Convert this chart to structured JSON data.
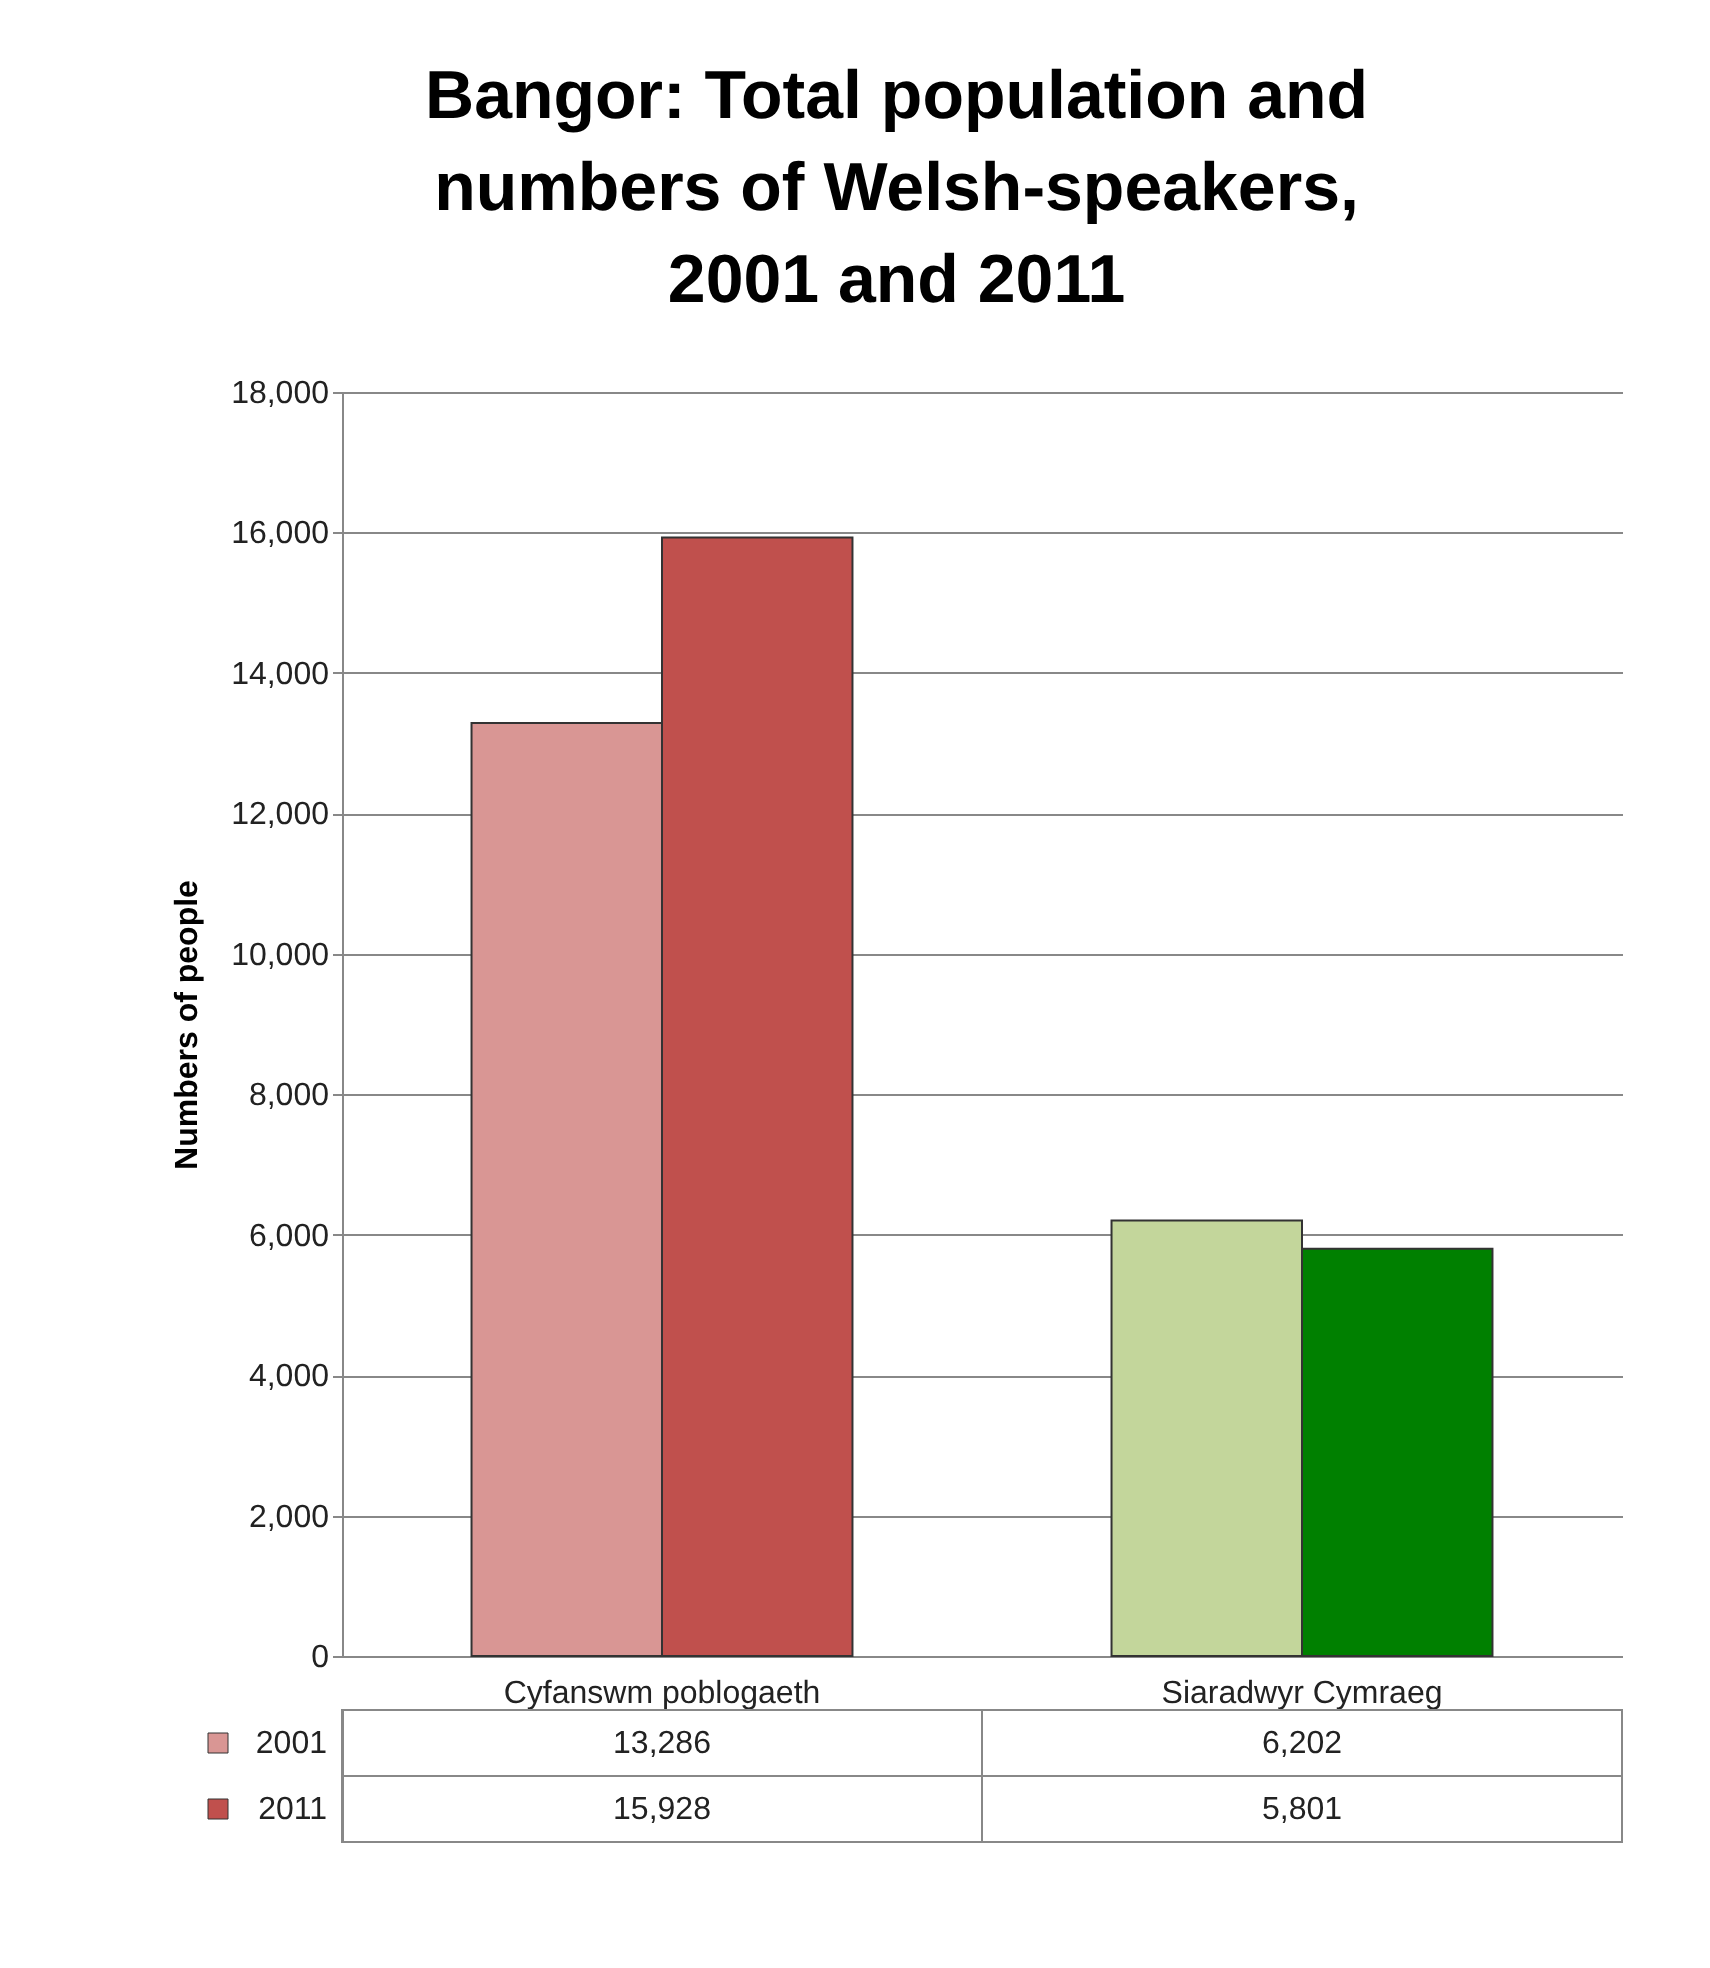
{
  "chart_data": {
    "type": "bar",
    "title": "Bangor: Total population and numbers of Welsh-speakers, 2001 and 2011",
    "ylabel": "Numbers of people",
    "categories": [
      "Cyfanswm poblogaeth",
      "Siaradwyr Cymraeg"
    ],
    "series": [
      {
        "name": "2001",
        "colors": [
          "#d99694",
          "#c3d69b"
        ],
        "values": [
          13286,
          6202
        ],
        "value_labels": [
          "13,286",
          "6,202"
        ]
      },
      {
        "name": "2011",
        "colors": [
          "#c0504d",
          "#008000"
        ],
        "values": [
          15928,
          5801
        ],
        "value_labels": [
          "15,928",
          "5,801"
        ]
      }
    ],
    "ylim": [
      0,
      18000
    ],
    "yticks": [
      {
        "value": 0,
        "label": "0"
      },
      {
        "value": 2000,
        "label": "2,000"
      },
      {
        "value": 4000,
        "label": "4,000"
      },
      {
        "value": 6000,
        "label": "6,000"
      },
      {
        "value": 8000,
        "label": "8,000"
      },
      {
        "value": 10000,
        "label": "10,000"
      },
      {
        "value": 12000,
        "label": "12,000"
      },
      {
        "value": 14000,
        "label": "14,000"
      },
      {
        "value": 16000,
        "label": "16,000"
      },
      {
        "value": 18000,
        "label": "18,000"
      }
    ],
    "grid": true,
    "legend": "bottom left"
  }
}
